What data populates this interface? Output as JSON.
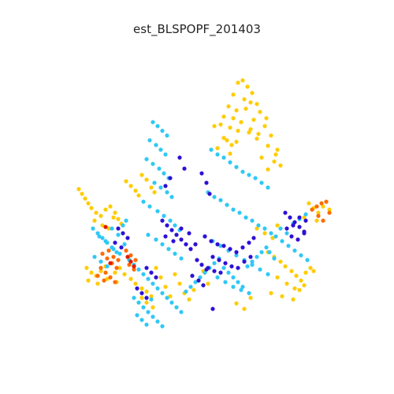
{
  "chart_data": {
    "type": "scatter",
    "title": "est_BLSPOPF_201403",
    "xlabel": "",
    "ylabel": "",
    "axes_visible": false,
    "grid": false,
    "legend": "none",
    "colors": {
      "dark_blue": "#2d10d6",
      "light_blue": "#30c8f5",
      "yellow": "#ffcc00",
      "orange": "#ff6a00",
      "red": "#e01a00"
    },
    "point_groups": [
      {
        "color_key": "yellow",
        "x": [
          302,
          308,
          314,
          320,
          296,
          310,
          318,
          326,
          290,
          300,
          312,
          330,
          284,
          296,
          306,
          322,
          338,
          280,
          292,
          302,
          316,
          328,
          344,
          288,
          300,
          326,
          340,
          352,
          276,
          292,
          332,
          348,
          356,
          272,
          284,
          340,
          350,
          294,
          318,
          336
        ],
        "y": [
          105,
          102,
          110,
          118,
          120,
          126,
          130,
          132,
          135,
          140,
          138,
          142,
          148,
          150,
          155,
          152,
          150,
          158,
          162,
          166,
          168,
          170,
          172,
          178,
          180,
          176,
          185,
          190,
          188,
          195,
          200,
          205,
          210,
          160,
          175,
          215,
          196,
          184,
          164,
          160
        ]
      },
      {
        "color_key": "yellow",
        "x": [
          100,
          104,
          108,
          112,
          116,
          122,
          128,
          134,
          140,
          146,
          150,
          154,
          120,
          130,
          138,
          144,
          160,
          166,
          172,
          176,
          180,
          186,
          192,
          196
        ],
        "y": [
          240,
          246,
          252,
          258,
          264,
          270,
          274,
          266,
          262,
          270,
          278,
          284,
          280,
          286,
          290,
          276,
          230,
          236,
          242,
          248,
          222,
          228,
          238,
          244
        ]
      },
      {
        "color_key": "yellow",
        "x": [
          110,
          116,
          122,
          128,
          134,
          140,
          146,
          152,
          112,
          124,
          136,
          148,
          158,
          166,
          172,
          180,
          186,
          192
        ],
        "y": [
          340,
          346,
          350,
          344,
          338,
          352,
          346,
          340,
          356,
          360,
          354,
          358,
          348,
          354,
          360,
          366,
          370,
          376
        ]
      },
      {
        "color_key": "yellow",
        "x": [
          340,
          348,
          356,
          362,
          370,
          376,
          382,
          388,
          394,
          352,
          364,
          374,
          386,
          398,
          344,
          358,
          372,
          380,
          326,
          336,
          346,
          352
        ],
        "y": [
          320,
          326,
          332,
          338,
          344,
          350,
          356,
          346,
          340,
          352,
          360,
          366,
          362,
          344,
          372,
          376,
          380,
          368,
          290,
          296,
          302,
          286
        ]
      },
      {
        "color_key": "yellow",
        "x": [
          392,
          398,
          404,
          410,
          414,
          418,
          386,
          402
        ],
        "y": [
          258,
          264,
          270,
          262,
          256,
          266,
          276,
          280
        ]
      },
      {
        "color_key": "yellow",
        "x": [
          198,
          204,
          210,
          216,
          222,
          228,
          234,
          240,
          246,
          252,
          258,
          264,
          180,
          186,
          194,
          300,
          310,
          318
        ],
        "y": [
          340,
          352,
          364,
          376,
          348,
          360,
          372,
          380,
          368,
          356,
          344,
          360,
          378,
          384,
          390,
          385,
          392,
          378
        ]
      },
      {
        "color_key": "light_blue",
        "x": [
          194,
          200,
          206,
          212,
          190,
          198,
          204,
          210,
          186,
          194,
          202,
          208,
          214,
          196,
          204,
          212,
          218,
          182,
          190,
          200,
          208,
          216,
          222,
          228,
          188,
          198,
          206,
          214,
          222,
          230
        ],
        "y": [
          155,
          160,
          166,
          172,
          178,
          184,
          190,
          196,
          202,
          208,
          214,
          220,
          226,
          232,
          238,
          244,
          250,
          256,
          262,
          268,
          274,
          280,
          286,
          292,
          298,
          304,
          310,
          316,
          322,
          328
        ]
      },
      {
        "color_key": "light_blue",
        "x": [
          268,
          276,
          284,
          292,
          300,
          308,
          316,
          324,
          332,
          340,
          264,
          272,
          280,
          288,
          296,
          304,
          312,
          320,
          328,
          336,
          344,
          260,
          270,
          280,
          290,
          300,
          310,
          320,
          330,
          340,
          276,
          286,
          296,
          306,
          316
        ],
        "y": [
          190,
          196,
          200,
          206,
          212,
          218,
          222,
          226,
          232,
          238,
          244,
          250,
          254,
          260,
          266,
          270,
          276,
          280,
          286,
          290,
          296,
          300,
          306,
          312,
          318,
          324,
          330,
          336,
          342,
          348,
          352,
          358,
          364,
          368,
          372
        ]
      },
      {
        "color_key": "light_blue",
        "x": [
          118,
          124,
          130,
          136,
          142,
          148,
          120,
          128,
          136,
          144,
          152,
          158,
          126,
          134,
          142,
          150,
          156,
          160
        ],
        "y": [
          290,
          296,
          302,
          308,
          314,
          320,
          326,
          332,
          338,
          316,
          322,
          310,
          300,
          306,
          290,
          298,
          286,
          280
        ]
      },
      {
        "color_key": "light_blue",
        "x": [
          164,
          170,
          176,
          182,
          188,
          194,
          200,
          206,
          212,
          218,
          224,
          230,
          236,
          242,
          248,
          254,
          260,
          266,
          272,
          278,
          284,
          290,
          296,
          302,
          308,
          314,
          320,
          326,
          332,
          338
        ],
        "y": [
          330,
          336,
          342,
          348,
          354,
          360,
          366,
          372,
          378,
          384,
          390,
          396,
          370,
          364,
          358,
          352,
          346,
          340,
          334,
          328,
          340,
          346,
          352,
          358,
          364,
          338,
          332,
          326,
          320,
          314
        ]
      },
      {
        "color_key": "light_blue",
        "x": [
          170,
          176,
          182,
          188,
          194,
          200,
          206,
          174,
          180,
          186,
          192
        ],
        "y": [
          378,
          384,
          390,
          396,
          402,
          408,
          414,
          400,
          406,
          412,
          380
        ]
      },
      {
        "color_key": "light_blue",
        "x": [
          350,
          358,
          366,
          374,
          382,
          390,
          356,
          364,
          372,
          380,
          388,
          342,
          348
        ],
        "y": [
          300,
          306,
          312,
          318,
          324,
          330,
          290,
          296,
          284,
          278,
          272,
          320,
          328
        ]
      },
      {
        "color_key": "dark_blue",
        "x": [
          260,
          268,
          276,
          284,
          292,
          300,
          308,
          316,
          322,
          270,
          278,
          286,
          294,
          302,
          310,
          318,
          264,
          272,
          280,
          250,
          256,
          262,
          244,
          252,
          258
        ],
        "y": [
          300,
          306,
          310,
          312,
          316,
          320,
          314,
          308,
          302,
          326,
          330,
          334,
          338,
          340,
          332,
          326,
          340,
          344,
          346,
          330,
          336,
          342,
          350,
          356,
          362
        ]
      },
      {
        "color_key": "dark_blue",
        "x": [
          206,
          212,
          218,
          224,
          230,
          236,
          242,
          248,
          210,
          220,
          230,
          240,
          186,
          192,
          198,
          174,
          180,
          186
        ],
        "y": [
          280,
          286,
          292,
          298,
          304,
          310,
          316,
          310,
          300,
          306,
          290,
          296,
          340,
          346,
          352,
          366,
          372,
          378
        ]
      },
      {
        "color_key": "dark_blue",
        "x": [
          362,
          368,
          374,
          380,
          386,
          370,
          378,
          386,
          364,
          372,
          380,
          388,
          150,
          156,
          162,
          146,
          154
        ],
        "y": [
          270,
          276,
          282,
          288,
          294,
          300,
          304,
          296,
          290,
          286,
          276,
          280,
          290,
          296,
          302,
          308,
          314
        ]
      },
      {
        "color_key": "dark_blue",
        "x": [
          256,
          262,
          266,
          228,
          234,
          216,
          210,
          270
        ],
        "y": [
          220,
          232,
          246,
          200,
          214,
          226,
          236,
          392
        ]
      },
      {
        "color_key": "orange",
        "x": [
          130,
          136,
          142,
          148,
          134,
          140,
          146,
          128,
          138,
          144,
          150,
          160,
          166,
          172,
          164,
          170,
          124,
          132
        ],
        "y": [
          322,
          328,
          334,
          340,
          346,
          352,
          358,
          340,
          318,
          326,
          330,
          318,
          324,
          330,
          336,
          342,
          350,
          356
        ]
      },
      {
        "color_key": "orange",
        "x": [
          396,
          402,
          408,
          414,
          418,
          404,
          410
        ],
        "y": [
          266,
          262,
          258,
          256,
          270,
          274,
          280
        ]
      },
      {
        "color_key": "red",
        "x": [
          162,
          166,
          170,
          134,
          140
        ],
        "y": [
          326,
          332,
          338,
          288,
          334
        ]
      }
    ]
  }
}
